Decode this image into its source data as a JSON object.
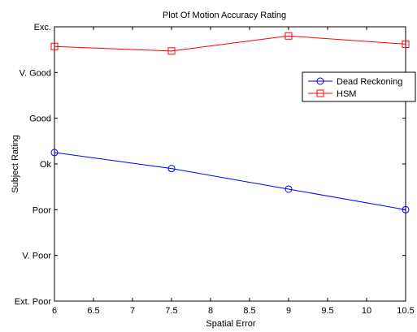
{
  "chart_data": {
    "type": "line",
    "title": "Plot Of Motion Accuracy Rating",
    "xlabel": "Spatial Error",
    "ylabel": "Subject Rating",
    "xlim": [
      6,
      10.5
    ],
    "ylim": [
      1,
      7
    ],
    "x_ticks": [
      6,
      6.5,
      7,
      7.5,
      8,
      8.5,
      9,
      9.5,
      10,
      10.5
    ],
    "x_tick_labels": [
      "6",
      "6.5",
      "7",
      "7.5",
      "8",
      "8.5",
      "9",
      "9.5",
      "10",
      "10.5"
    ],
    "y_ticks": [
      1,
      2,
      3,
      4,
      5,
      6,
      7
    ],
    "y_tick_labels": [
      "Ext. Poor",
      "V. Poor",
      "Poor",
      "Ok",
      "Good",
      "V. Good",
      "Exc."
    ],
    "grid": false,
    "legend_position": "top-right",
    "series": [
      {
        "name": "Dead Reckoning",
        "color": "#0000ff",
        "marker": "circle",
        "x": [
          6,
          7.5,
          9,
          10.5
        ],
        "y": [
          4.25,
          3.9,
          3.45,
          3.0
        ]
      },
      {
        "name": "HSM",
        "color": "#ff0000",
        "marker": "square",
        "x": [
          6,
          7.5,
          9,
          10.5
        ],
        "y": [
          6.57,
          6.47,
          6.8,
          6.62
        ]
      }
    ]
  }
}
